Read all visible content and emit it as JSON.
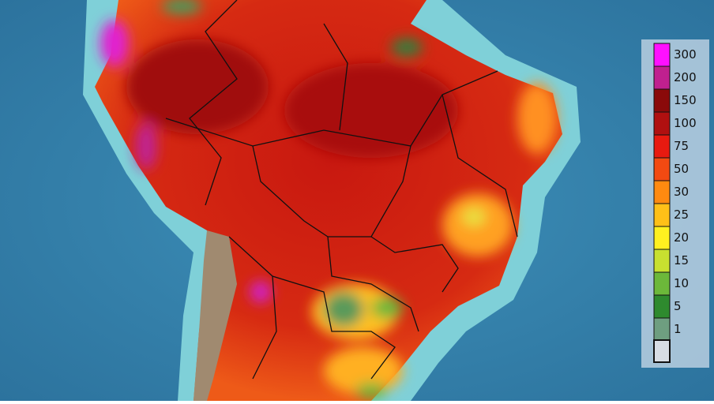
{
  "legend": {
    "values": [
      300,
      200,
      150,
      100,
      75,
      50,
      30,
      25,
      20,
      15,
      10,
      5,
      1
    ],
    "colors": [
      "#ff10ff",
      "#c0208f",
      "#8a0a0a",
      "#b01010",
      "#e81a10",
      "#f24a12",
      "#ff8a10",
      "#ffc018",
      "#fff020",
      "#c8e030",
      "#6cb83a",
      "#2e8a2e",
      "#6e9e80"
    ]
  }
}
